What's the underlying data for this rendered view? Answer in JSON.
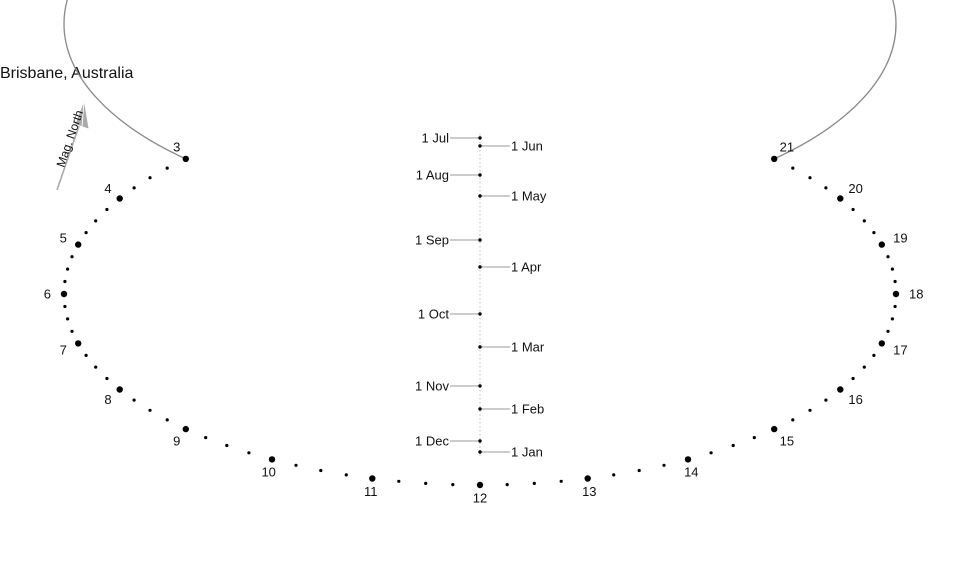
{
  "title": "Brisbane, Australia",
  "north_arrow": {
    "label": "Mag. North",
    "color": "#aaaaaa"
  },
  "colors": {
    "ellipse": "#888888",
    "marker": "#000000",
    "leader": "#999999",
    "axis": "#bbbbbb",
    "text": "#111111"
  },
  "hours": [
    "3",
    "4",
    "5",
    "6",
    "7",
    "8",
    "9",
    "10",
    "11",
    "12",
    "13",
    "14",
    "15",
    "16",
    "17",
    "18",
    "19",
    "20",
    "21"
  ],
  "date_labels_left": [
    "1 Jul",
    "1 Aug",
    "1 Sep",
    "1 Oct",
    "1 Nov",
    "1 Dec"
  ],
  "date_labels_right": [
    "1 Jun",
    "1 May",
    "1 Apr",
    "1 Mar",
    "1 Feb",
    "1 Jan"
  ],
  "chart_data": {
    "type": "analemmatic-sundial",
    "title": "Brisbane, Australia",
    "hour_markers": [
      3,
      4,
      5,
      6,
      7,
      8,
      9,
      10,
      11,
      12,
      13,
      14,
      15,
      16,
      17,
      18,
      19,
      20,
      21
    ],
    "minor_marks_per_hour": 3,
    "date_scale": {
      "left": [
        "1 Jul",
        "1 Aug",
        "1 Sep",
        "1 Oct",
        "1 Nov",
        "1 Dec"
      ],
      "right": [
        "1 Jun",
        "1 May",
        "1 Apr",
        "1 Mar",
        "1 Feb",
        "1 Jan"
      ]
    },
    "north_arrow_label": "Mag. North"
  }
}
